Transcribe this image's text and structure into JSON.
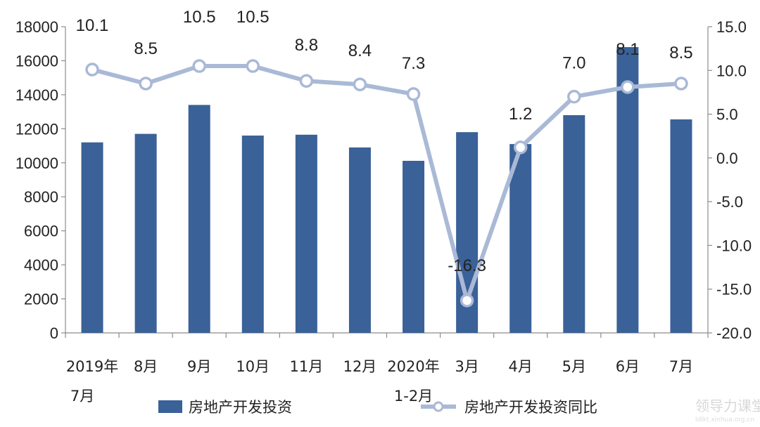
{
  "chart_data": {
    "type": "bar+line",
    "categories": [
      [
        "2019年",
        "7月"
      ],
      [
        "8月"
      ],
      [
        "9月"
      ],
      [
        "10月"
      ],
      [
        "11月"
      ],
      [
        "12月"
      ],
      [
        "2020年",
        "1-2月"
      ],
      [
        "3月"
      ],
      [
        "4月"
      ],
      [
        "5月"
      ],
      [
        "6月"
      ],
      [
        "7月"
      ]
    ],
    "series": [
      {
        "name": "房地产开发投资",
        "type": "bar",
        "axis": "left",
        "color": "#3a6198",
        "values": [
          11200,
          11700,
          13400,
          11600,
          11650,
          10900,
          10115,
          11800,
          11100,
          12800,
          16800,
          12550
        ]
      },
      {
        "name": "房地产开发投资同比",
        "type": "line",
        "axis": "right",
        "color": "#a9b9d6",
        "values": [
          10.1,
          8.5,
          10.5,
          10.5,
          8.8,
          8.4,
          7.3,
          -16.3,
          1.2,
          7.0,
          8.1,
          8.5
        ],
        "labels": [
          "10.1",
          "8.5",
          "10.5",
          "10.5",
          "8.8",
          "8.4",
          "7.3",
          "-16.3",
          "1.2",
          "7.0",
          "8.1",
          "8.5"
        ]
      }
    ],
    "y_left": {
      "range": [
        0,
        18000
      ],
      "ticks": [
        "0",
        "2000",
        "4000",
        "6000",
        "8000",
        "10000",
        "12000",
        "14000",
        "16000",
        "18000"
      ]
    },
    "y_right": {
      "range": [
        -20,
        15
      ],
      "ticks": [
        "-20.0",
        "-15.0",
        "-10.0",
        "-5.0",
        "0.0",
        "5.0",
        "10.0",
        "15.0"
      ]
    },
    "grid": false,
    "legend_position": "bottom"
  },
  "watermark": {
    "text": "领导力课堂",
    "subtext": "ldlkt.xinhua.org.cn"
  }
}
